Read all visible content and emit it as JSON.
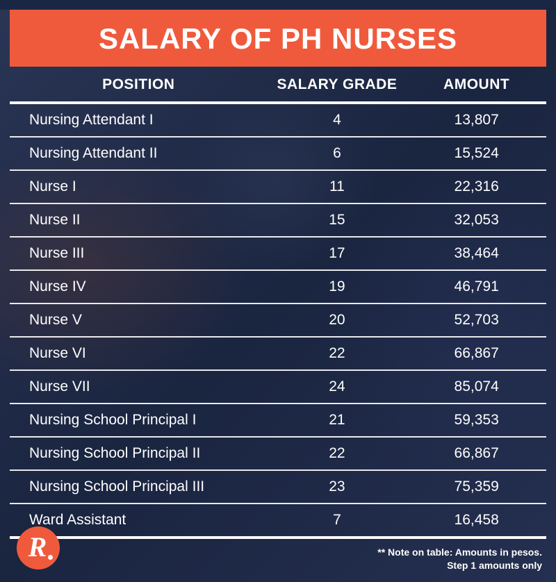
{
  "title": "SALARY OF PH NURSES",
  "title_bg": "#f05a3c",
  "title_color": "#ffffff",
  "title_fontsize": 42,
  "background_base": "#1a2744",
  "columns": [
    "POSITION",
    "SALARY GRADE",
    "AMOUNT"
  ],
  "header_fontsize": 21,
  "header_border_color": "#ffffff",
  "row_fontsize": 21,
  "row_border_color": "#ffffff",
  "text_color": "#ffffff",
  "column_align": [
    "left",
    "center",
    "center"
  ],
  "column_widths_pct": [
    48,
    26,
    26
  ],
  "rows": [
    {
      "position": "Nursing Attendant I",
      "grade": "4",
      "amount": "13,807"
    },
    {
      "position": "Nursing Attendant II",
      "grade": "6",
      "amount": "15,524"
    },
    {
      "position": "Nurse I",
      "grade": "11",
      "amount": "22,316"
    },
    {
      "position": "Nurse II",
      "grade": "15",
      "amount": "32,053"
    },
    {
      "position": "Nurse III",
      "grade": "17",
      "amount": "38,464"
    },
    {
      "position": "Nurse IV",
      "grade": "19",
      "amount": "46,791"
    },
    {
      "position": "Nurse V",
      "grade": "20",
      "amount": "52,703"
    },
    {
      "position": "Nurse VI",
      "grade": "22",
      "amount": "66,867"
    },
    {
      "position": "Nurse VII",
      "grade": "24",
      "amount": "85,074"
    },
    {
      "position": "Nursing School Principal I",
      "grade": "21",
      "amount": "59,353"
    },
    {
      "position": "Nursing School Principal II",
      "grade": "22",
      "amount": "66,867"
    },
    {
      "position": "Nursing School Principal III",
      "grade": "23",
      "amount": "75,359"
    },
    {
      "position": "Ward Assistant",
      "grade": "7",
      "amount": "16,458"
    }
  ],
  "footnote_line1": "** Note on table: Amounts in pesos.",
  "footnote_line2": "Step 1 amounts only",
  "footnote_fontsize": 14,
  "logo_bg": "#f05a3c",
  "logo_letter": "R",
  "logo_dot_color": "#ffffff"
}
